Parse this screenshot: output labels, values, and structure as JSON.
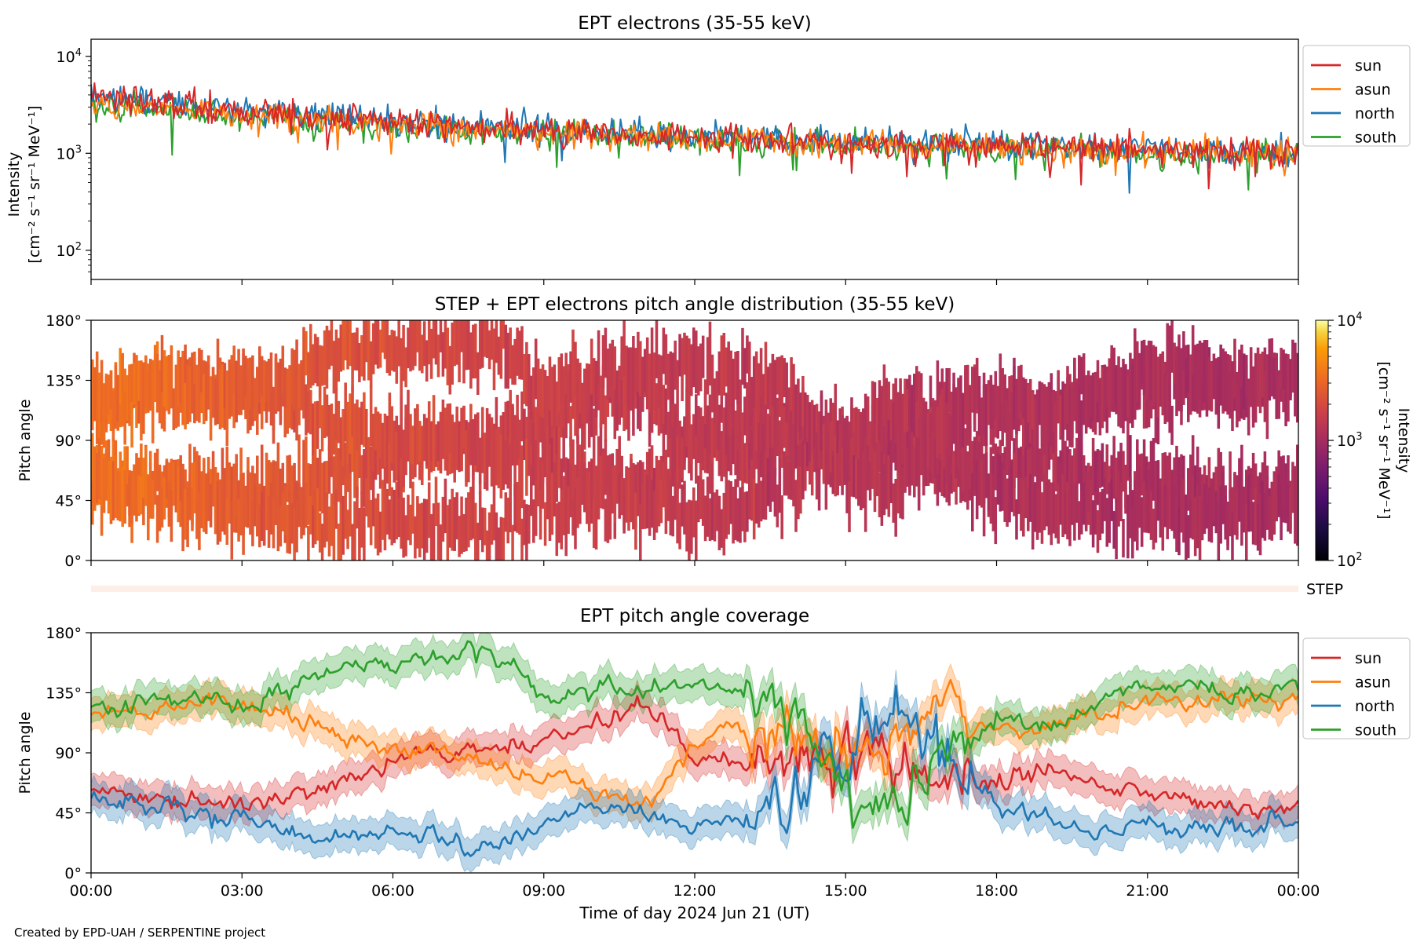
{
  "credit": "Created by EPD-UAH / SERPENTINE project",
  "xaxis": {
    "label": "Time of day 2024 Jun 21 (UT)",
    "ticks": [
      "00:00",
      "03:00",
      "06:00",
      "09:00",
      "12:00",
      "15:00",
      "18:00",
      "21:00",
      "00:00"
    ]
  },
  "colors": {
    "sun": "#d62728",
    "asun": "#ff7f0e",
    "north": "#1f77b4",
    "south": "#2ca02c",
    "step_band": "#fdeee8"
  },
  "panels": {
    "intensity": {
      "title": "EPT electrons (35-55 keV)",
      "ylabel_line1": "Intensity",
      "ylabel_line2": "[cm⁻² s⁻¹ sr⁻¹ MeV⁻¹]",
      "yticks": [
        {
          "base": "10",
          "exp": "4"
        },
        {
          "base": "10",
          "exp": "3"
        },
        {
          "base": "10",
          "exp": "2"
        }
      ],
      "legend": [
        "sun",
        "asun",
        "north",
        "south"
      ]
    },
    "pad": {
      "title": "STEP + EPT electrons pitch angle distribution (35-55 keV)",
      "ylabel": "Pitch angle",
      "yticks": [
        "180°",
        "135°",
        "90°",
        "45°",
        "0°"
      ],
      "colorbar_label": "Intensity",
      "colorbar_units": "[cm⁻² s⁻¹ sr⁻¹ MeV⁻¹]",
      "colorbar_ticks": [
        {
          "base": "10",
          "exp": "4"
        },
        {
          "base": "10",
          "exp": "3"
        },
        {
          "base": "10",
          "exp": "2"
        }
      ]
    },
    "step": {
      "label": "STEP"
    },
    "coverage": {
      "title": "EPT pitch angle coverage",
      "ylabel": "Pitch angle",
      "yticks": [
        "180°",
        "135°",
        "90°",
        "45°",
        "0°"
      ],
      "legend": [
        "sun",
        "asun",
        "north",
        "south"
      ]
    }
  },
  "chart_data": [
    {
      "type": "line",
      "title": "EPT electrons (35-55 keV)",
      "xlabel": "Time of day 2024 Jun 21 (UT)",
      "ylabel": "Intensity [cm⁻² s⁻¹ sr⁻¹ MeV⁻¹]",
      "yscale": "log",
      "ylim": [
        50,
        15000
      ],
      "xlim": [
        "00:00",
        "24:00"
      ],
      "x": [
        "00:00",
        "03:00",
        "06:00",
        "09:00",
        "12:00",
        "15:00",
        "18:00",
        "21:00",
        "24:00"
      ],
      "series": [
        {
          "name": "sun",
          "values": [
            3800,
            2700,
            2100,
            1700,
            1450,
            1300,
            1200,
            1100,
            1050
          ]
        },
        {
          "name": "asun",
          "values": [
            3300,
            2500,
            1950,
            1600,
            1380,
            1250,
            1150,
            1050,
            1000
          ]
        },
        {
          "name": "north",
          "values": [
            3900,
            2800,
            2150,
            1750,
            1500,
            1320,
            1200,
            1100,
            1050
          ]
        },
        {
          "name": "south",
          "values": [
            3100,
            2400,
            1900,
            1550,
            1350,
            1200,
            1100,
            1000,
            950
          ]
        }
      ],
      "legend": "outside-right",
      "grid": false
    },
    {
      "type": "heatmap",
      "title": "STEP + EPT electrons pitch angle distribution (35-55 keV)",
      "xlabel": "Time of day 2024 Jun 21 (UT)",
      "ylabel": "Pitch angle",
      "ylim": [
        0,
        180
      ],
      "colorbar": {
        "label": "Intensity [cm⁻² s⁻¹ sr⁻¹ MeV⁻¹]",
        "scale": "log",
        "range": [
          100,
          10000
        ],
        "colormap": "inferno"
      },
      "x": [
        "00:00",
        "03:00",
        "06:00",
        "09:00",
        "12:00",
        "15:00",
        "18:00",
        "21:00",
        "24:00"
      ],
      "intensity": [
        3500,
        2600,
        2000,
        1650,
        1450,
        1300,
        1200,
        1100,
        1050
      ]
    },
    {
      "type": "line",
      "title": "EPT pitch angle coverage",
      "xlabel": "Time of day 2024 Jun 21 (UT)",
      "ylabel": "Pitch angle",
      "ylim": [
        0,
        180
      ],
      "x": [
        "00:00",
        "01:00",
        "02:00",
        "03:00",
        "04:00",
        "05:00",
        "06:00",
        "07:00",
        "08:00",
        "09:00",
        "10:00",
        "11:00",
        "12:00",
        "13:00",
        "14:00",
        "15:00",
        "16:00",
        "17:00",
        "18:00",
        "19:00",
        "20:00",
        "21:00",
        "22:00",
        "23:00",
        "24:00"
      ],
      "series": [
        {
          "name": "sun",
          "values": [
            60,
            58,
            52,
            50,
            58,
            70,
            82,
            90,
            88,
            100,
            112,
            125,
            85,
            80,
            90,
            80,
            85,
            60,
            70,
            75,
            65,
            60,
            55,
            50,
            50
          ]
        },
        {
          "name": "asun",
          "values": [
            120,
            122,
            128,
            128,
            118,
            100,
            92,
            92,
            80,
            72,
            62,
            50,
            95,
            110,
            95,
            90,
            100,
            120,
            110,
            108,
            122,
            125,
            130,
            128,
            132
          ]
        },
        {
          "name": "north",
          "values": [
            55,
            52,
            45,
            42,
            30,
            28,
            30,
            25,
            18,
            40,
            45,
            45,
            35,
            40,
            60,
            90,
            120,
            80,
            50,
            40,
            35,
            38,
            30,
            35,
            40
          ]
        },
        {
          "name": "south",
          "values": [
            125,
            128,
            130,
            125,
            140,
            155,
            158,
            162,
            165,
            130,
            135,
            140,
            142,
            135,
            120,
            60,
            55,
            100,
            118,
            110,
            125,
            140,
            145,
            130,
            140
          ]
        }
      ],
      "bands": "±10° shaded spread around each series",
      "legend": "outside-right",
      "grid": false
    }
  ]
}
